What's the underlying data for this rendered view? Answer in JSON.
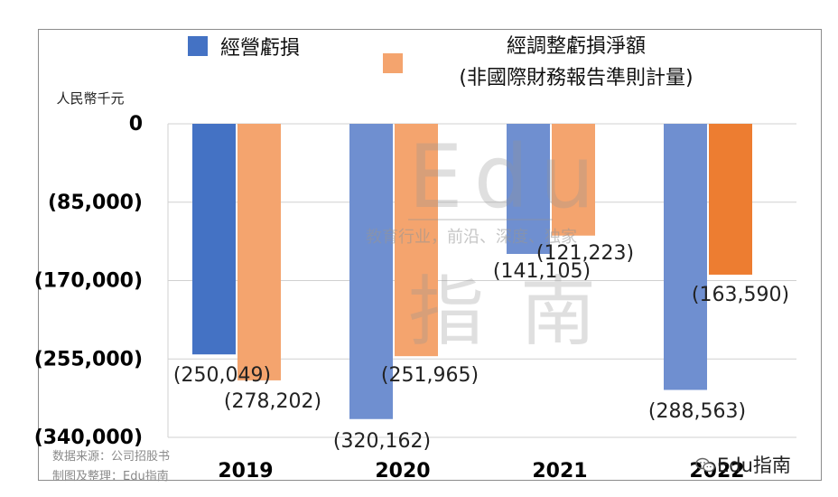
{
  "chart_data": {
    "type": "bar",
    "categories": [
      "2019",
      "2020",
      "2021",
      "2022"
    ],
    "series": [
      {
        "name": "經營虧損",
        "values": [
          -250049,
          -320162,
          -141105,
          -288563
        ],
        "labels": [
          "(250,049)",
          "(320,162)",
          "(141,105)",
          "(288,563)"
        ],
        "color": "#4472c4"
      },
      {
        "name": "經調整虧損淨額\n(非國際財務報告準則計量)",
        "values": [
          -278202,
          -251965,
          -121223,
          -163590
        ],
        "labels": [
          "(278,202)",
          "(251,965)",
          "(121,223)",
          "(163,590)"
        ],
        "color": "#f4a46e"
      }
    ],
    "ylabel": "人民幣千元",
    "ylim": [
      -340000,
      0
    ],
    "yticks": [
      0,
      -85000,
      -170000,
      -255000,
      -340000
    ],
    "ytick_labels": [
      "0",
      "(85,000)",
      "(170,000)",
      "(255,000)",
      "(340,000)"
    ],
    "grid": true,
    "legend": "top"
  },
  "source": {
    "line1": "数据来源：公司招股书",
    "line2": "制图及整理：Edu指南"
  },
  "watermark": {
    "edu": "Edu",
    "slogan": "教育行业，前沿、深度、独家",
    "nan": "指南"
  },
  "brand": "Edu指南"
}
